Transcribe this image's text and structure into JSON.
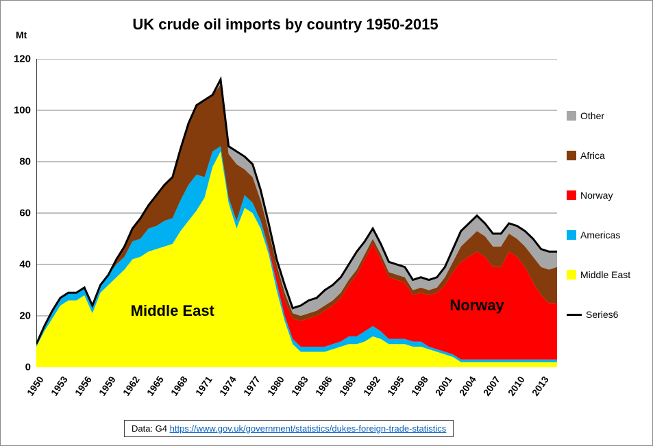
{
  "chart": {
    "type": "stacked-area",
    "title": "UK crude oil imports by country 1950-2015",
    "y_unit_label": "Mt",
    "title_fontsize": 22,
    "label_fontsize": 14,
    "tick_fontsize": 15,
    "background_color": "#ffffff",
    "grid_color": "#7f7f7f",
    "grid_weight": 1,
    "axis_color": "#000000",
    "years": [
      1950,
      1951,
      1952,
      1953,
      1954,
      1955,
      1956,
      1957,
      1958,
      1959,
      1960,
      1961,
      1962,
      1963,
      1964,
      1965,
      1966,
      1967,
      1968,
      1969,
      1970,
      1971,
      1972,
      1973,
      1974,
      1975,
      1976,
      1977,
      1978,
      1979,
      1980,
      1981,
      1982,
      1983,
      1984,
      1985,
      1986,
      1987,
      1988,
      1989,
      1990,
      1991,
      1992,
      1993,
      1994,
      1995,
      1996,
      1997,
      1998,
      1999,
      2000,
      2001,
      2002,
      2003,
      2004,
      2005,
      2006,
      2007,
      2008,
      2009,
      2010,
      2011,
      2012,
      2013,
      2014,
      2015
    ],
    "x_tick_step": 3,
    "x_tick_rotation_deg": -55,
    "ylim": [
      0,
      120
    ],
    "ytick_step": 20,
    "series": [
      {
        "name": "Middle East",
        "color": "#ffff00",
        "values": [
          8,
          14,
          19,
          24,
          26,
          26,
          28,
          21,
          29,
          32,
          35,
          38,
          42,
          43,
          45,
          46,
          47,
          48,
          53,
          57,
          61,
          66,
          78,
          84,
          64,
          54,
          62,
          60,
          54,
          44,
          30,
          18,
          9,
          6,
          6,
          6,
          6,
          7,
          8,
          9,
          9,
          10,
          12,
          11,
          9,
          9,
          9,
          8,
          8,
          7,
          6,
          5,
          4,
          2,
          2,
          2,
          2,
          2,
          2,
          2,
          2,
          2,
          2,
          2,
          2,
          2
        ]
      },
      {
        "name": "Americas",
        "color": "#00b0f0",
        "values": [
          1,
          2,
          3,
          3,
          3,
          3,
          3,
          3,
          3,
          4,
          5,
          5,
          7,
          7,
          9,
          9,
          10,
          10,
          12,
          14,
          14,
          8,
          6,
          2,
          2,
          3,
          5,
          4,
          3,
          2,
          3,
          2,
          2,
          2,
          2,
          2,
          2,
          2,
          2,
          3,
          3,
          4,
          4,
          3,
          2,
          2,
          2,
          2,
          2,
          1,
          1,
          1,
          1,
          1,
          1,
          1,
          1,
          1,
          1,
          1,
          1,
          1,
          1,
          1,
          1,
          1
        ]
      },
      {
        "name": "Norway",
        "color": "#ff0000",
        "values": [
          0,
          0,
          0,
          0,
          0,
          0,
          0,
          0,
          0,
          0,
          0,
          0,
          0,
          0,
          0,
          0,
          0,
          0,
          0,
          0,
          0,
          0,
          0,
          0,
          0,
          0,
          0,
          0,
          0,
          1,
          4,
          6,
          8,
          10,
          11,
          12,
          14,
          15,
          17,
          20,
          24,
          28,
          32,
          28,
          24,
          23,
          22,
          18,
          19,
          20,
          22,
          26,
          32,
          38,
          40,
          42,
          40,
          36,
          36,
          42,
          40,
          36,
          30,
          25,
          22,
          22
        ]
      },
      {
        "name": "Africa",
        "color": "#843c0c",
        "values": [
          0,
          0,
          0,
          0,
          0,
          0,
          0,
          0,
          0,
          0,
          2,
          4,
          5,
          8,
          9,
          12,
          14,
          16,
          20,
          24,
          27,
          30,
          22,
          24,
          17,
          22,
          10,
          10,
          8,
          6,
          3,
          3,
          2,
          2,
          2,
          2,
          2,
          2,
          2,
          2,
          2,
          2,
          2,
          2,
          2,
          2,
          2,
          2,
          2,
          2,
          2,
          3,
          4,
          6,
          7,
          8,
          8,
          8,
          8,
          7,
          7,
          8,
          10,
          11,
          13,
          14
        ]
      },
      {
        "name": "Other",
        "color": "#a6a6a6",
        "values": [
          0,
          0,
          0,
          0,
          0,
          0,
          0,
          0,
          0,
          0,
          0,
          0,
          0,
          0,
          0,
          0,
          0,
          0,
          0,
          0,
          0,
          0,
          0,
          2,
          3,
          5,
          5,
          5,
          4,
          3,
          2,
          3,
          2,
          4,
          5,
          5,
          6,
          6,
          6,
          6,
          7,
          5,
          4,
          4,
          4,
          4,
          4,
          4,
          4,
          4,
          4,
          4,
          5,
          6,
          6,
          6,
          5,
          5,
          5,
          4,
          5,
          6,
          7,
          7,
          7,
          6
        ]
      }
    ],
    "total_line": {
      "name": "Series6",
      "color": "#000000",
      "width": 3
    },
    "legend": {
      "position": "right",
      "items": [
        {
          "label": "Other",
          "type": "swatch",
          "color": "#a6a6a6"
        },
        {
          "label": "Africa",
          "type": "swatch",
          "color": "#843c0c"
        },
        {
          "label": "Norway",
          "type": "swatch",
          "color": "#ff0000"
        },
        {
          "label": "Americas",
          "type": "swatch",
          "color": "#00b0f0"
        },
        {
          "label": "Middle East",
          "type": "swatch",
          "color": "#ffff00"
        },
        {
          "label": "Series6",
          "type": "line",
          "color": "#000000"
        }
      ]
    },
    "region_labels": [
      {
        "text": "Middle East",
        "x_year": 1967,
        "y_value": 22
      },
      {
        "text": "Norway",
        "x_year": 2005,
        "y_value": 24
      }
    ],
    "source": {
      "prefix": "Data:   G4   ",
      "url_text": "https://www.gov.uk/government/statistics/dukes-foreign-trade-statistics",
      "url_href": "https://www.gov.uk/government/statistics/dukes-foreign-trade-statistics"
    }
  }
}
